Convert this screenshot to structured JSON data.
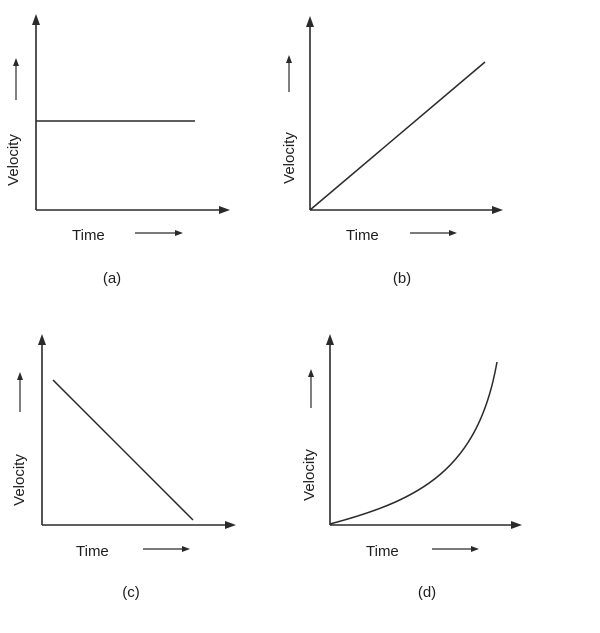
{
  "panels": [
    {
      "id": "a",
      "label": "(a)",
      "xlabel": "Time",
      "ylabel": "Velocity",
      "relation": "constant"
    },
    {
      "id": "b",
      "label": "(b)",
      "xlabel": "Time",
      "ylabel": "Velocity",
      "relation": "increasing-linear"
    },
    {
      "id": "c",
      "label": "(c)",
      "xlabel": "Time",
      "ylabel": "Velocity",
      "relation": "decreasing-linear"
    },
    {
      "id": "d",
      "label": "(d)",
      "xlabel": "Time",
      "ylabel": "Velocity",
      "relation": "increasing-exponential"
    }
  ],
  "colors": {
    "ink": "#2a2a2a",
    "background": "#ffffff"
  },
  "icons": [
    "right-arrow-icon",
    "up-arrow-icon"
  ]
}
